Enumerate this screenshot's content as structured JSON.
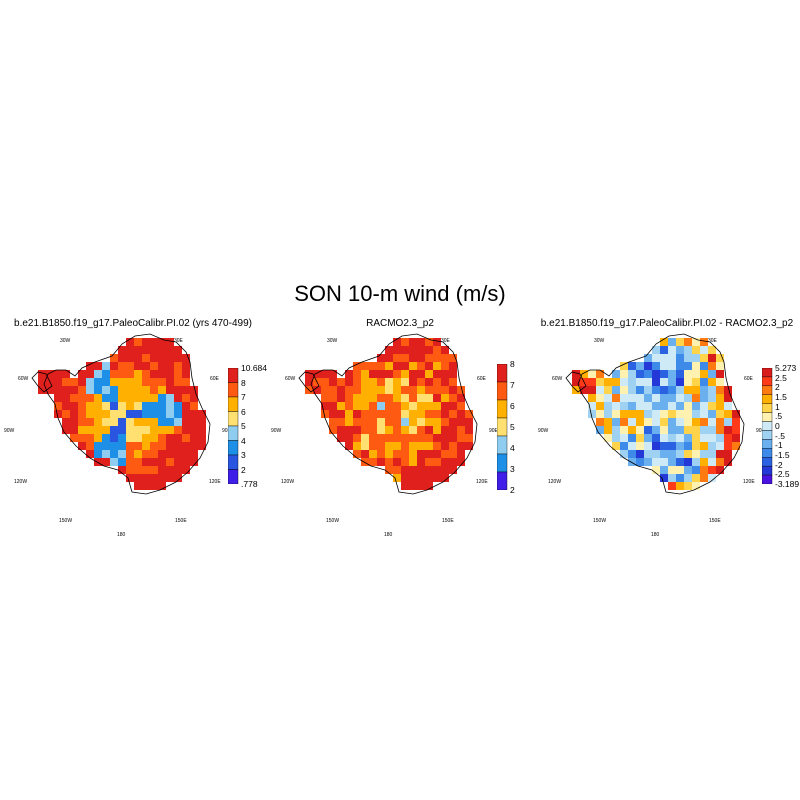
{
  "title": "SON 10-m wind (m/s)",
  "longitude_labels": [
    "30W",
    "30E",
    "60W",
    "60E",
    "90W",
    "90E",
    "120W",
    "120E",
    "150W",
    "150E",
    "180"
  ],
  "panels": [
    {
      "title": "b.e21.B1850.f19_g17.PaleoCalibr.PI.02 (yrs 470-499)",
      "palette": [
        "#3f1fe8",
        "#2a55e0",
        "#1d8fe6",
        "#8ecdf0",
        "#ffe070",
        "#ffb000",
        "#ff5a12",
        "#e0201c"
      ],
      "colorbar_labels": [
        "10.684",
        "8",
        "7",
        "6",
        "5",
        "4",
        "3",
        "2",
        ".778"
      ],
      "pattern": "model"
    },
    {
      "title": "RACMO2.3_p2",
      "palette": [
        "#3f1fe8",
        "#1d8fe6",
        "#8ecdf0",
        "#ffe070",
        "#ffb000",
        "#ff5a12",
        "#e0201c"
      ],
      "colorbar_labels": [
        "8",
        "7",
        "6",
        "5",
        "4",
        "3",
        "2"
      ],
      "pattern": "obs"
    },
    {
      "title": "b.e21.B1850.f19_g17.PaleoCalibr.PI.02 - RACMO2.3_p2",
      "palette": [
        "#4a12e0",
        "#2438d8",
        "#2a62e2",
        "#3e8ae8",
        "#6ab0ee",
        "#9fd2f2",
        "#cfeaf7",
        "#fff2b0",
        "#ffd44a",
        "#ffb000",
        "#ff7a10",
        "#ff3a18",
        "#d81c1c"
      ],
      "colorbar_labels": [
        "5.273",
        "2.5",
        "2",
        "1.5",
        "1",
        ".5",
        "0",
        "-.5",
        "-1",
        "-1.5",
        "-2",
        "-2.5",
        "-3.189"
      ],
      "pattern": "diff"
    }
  ]
}
